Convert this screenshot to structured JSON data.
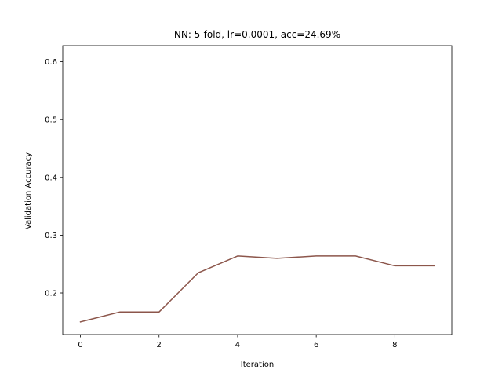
{
  "chart_data": {
    "type": "line",
    "title": "NN: 5-fold, lr=0.0001, acc=24.69%",
    "xlabel": "Iteration",
    "ylabel": "Validation Accuracy",
    "xlim": [
      -0.45,
      9.45
    ],
    "ylim": [
      0.128,
      0.628
    ],
    "xticks": [
      0,
      2,
      4,
      6,
      8
    ],
    "yticks": [
      0.2,
      0.3,
      0.4,
      0.5,
      0.6
    ],
    "grid": false,
    "series": [
      {
        "color": "#8c564b",
        "x": [
          0,
          1,
          2,
          3,
          4,
          5,
          6,
          7,
          8,
          9
        ],
        "y": [
          0.15,
          0.167,
          0.167,
          0.235,
          0.264,
          0.26,
          0.264,
          0.264,
          0.247,
          0.247
        ]
      }
    ]
  }
}
